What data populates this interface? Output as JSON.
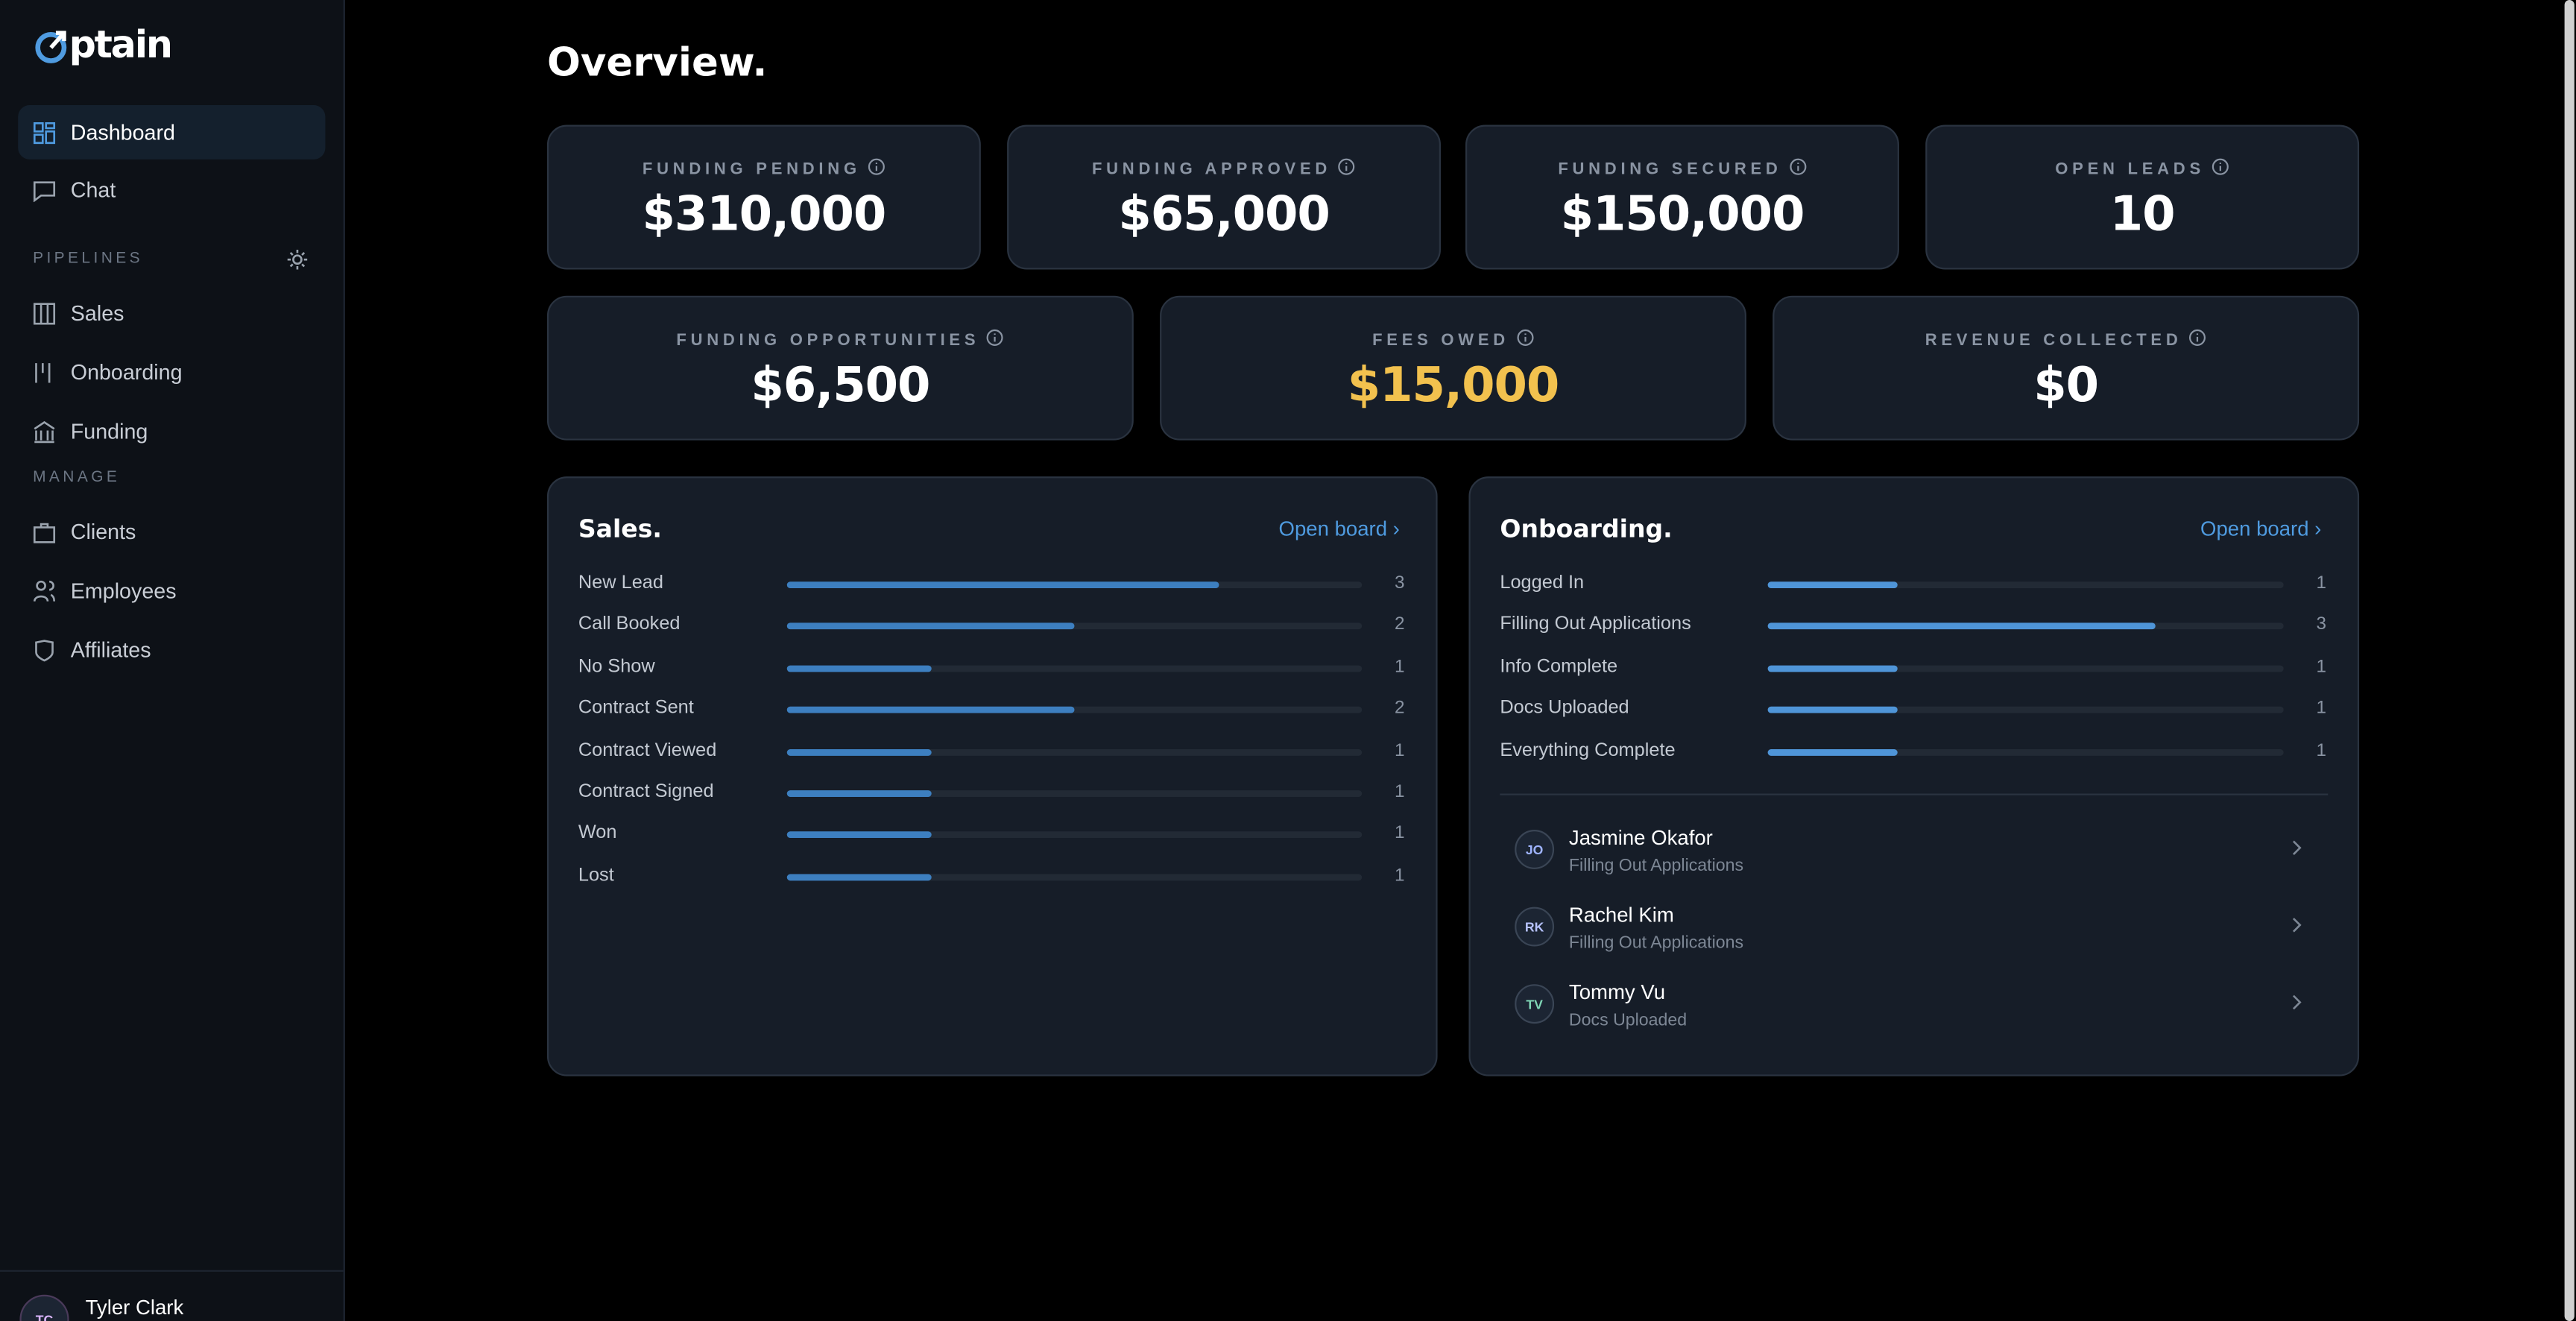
{
  "sidebar": {
    "logo": "ptain",
    "nav": [
      "Dashboard",
      "Chat"
    ],
    "sections": [
      {
        "title": "PIPELINES",
        "items": [
          "Sales",
          "Onboarding",
          "Funding"
        ]
      },
      {
        "title": "MANAGE",
        "items": [
          "Clients",
          "Employees",
          "Affiliates"
        ]
      }
    ],
    "user": {
      "initials": "TC",
      "name": "Tyler Clark"
    }
  },
  "header": {
    "title": "Overview."
  },
  "stats": [
    {
      "label": "FUNDING PENDING",
      "value": "$310,000"
    },
    {
      "label": "FUNDING APPROVED",
      "value": "$65,000"
    },
    {
      "label": "FUNDING SECURED",
      "value": "$150,000"
    },
    {
      "label": "OPEN LEADS",
      "value": "10"
    },
    {
      "label": "FUNDING OPPORTUNITIES",
      "value": "$6,500"
    },
    {
      "label": "FEES OWED",
      "value": "$15,000",
      "color": "#f2c14e"
    },
    {
      "label": "REVENUE COLLECTED",
      "value": "$0"
    }
  ],
  "sales": {
    "title": "Sales.",
    "link": "Open board",
    "stages": [
      {
        "name": "New Lead",
        "count": 3
      },
      {
        "name": "Call Booked",
        "count": 2
      },
      {
        "name": "No Show",
        "count": 1
      },
      {
        "name": "Contract Sent",
        "count": 2
      },
      {
        "name": "Contract Viewed",
        "count": 1
      },
      {
        "name": "Contract Signed",
        "count": 1
      },
      {
        "name": "Won",
        "count": 1
      },
      {
        "name": "Lost",
        "count": 1
      }
    ]
  },
  "onboarding": {
    "title": "Onboarding.",
    "link": "Open board",
    "stages": [
      {
        "name": "Logged In",
        "count": 1
      },
      {
        "name": "Filling Out Applications",
        "count": 3
      },
      {
        "name": "Info Complete",
        "count": 1
      },
      {
        "name": "Docs Uploaded",
        "count": 1
      },
      {
        "name": "Everything Complete",
        "count": 1
      }
    ],
    "clients": [
      {
        "initials": "JO",
        "name": "Jasmine Okafor",
        "status": "Filling Out Applications"
      },
      {
        "initials": "RK",
        "name": "Rachel Kim",
        "status": "Filling Out Applications"
      },
      {
        "initials": "TV",
        "name": "Tommy Vu",
        "status": "Docs Uploaded"
      }
    ]
  }
}
